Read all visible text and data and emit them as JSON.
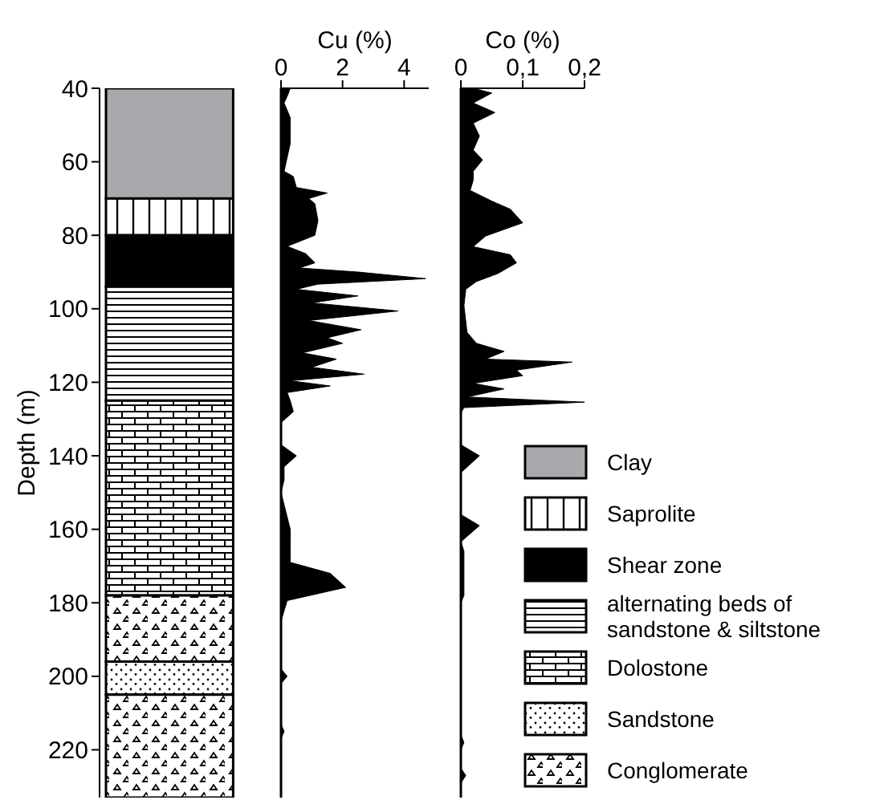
{
  "chart_data": [
    {
      "type": "bar",
      "categories": [
        null
      ],
      "ylabel": "Depth (m)",
      "ylim": [
        233,
        40
      ],
      "yticks": [
        40,
        60,
        80,
        100,
        120,
        140,
        160,
        180,
        200,
        220
      ],
      "tick_labels": "y",
      "legend": "right",
      "grid": false,
      "series": [
        {
          "name": "Clay",
          "color": "#a7a9ac",
          "base": [
            40
          ],
          "values": [
            30
          ]
        },
        {
          "name": "Saprolite",
          "color": "#ffffff",
          "base": [
            70
          ],
          "values": [
            10
          ]
        },
        {
          "name": "Shear zone",
          "color": "#000000",
          "base": [
            80
          ],
          "values": [
            14
          ]
        },
        {
          "name": "alternating beds of sandstone & siltstone",
          "color": "#ffffff",
          "base": [
            94
          ],
          "values": [
            31
          ]
        },
        {
          "name": "Dolostone",
          "color": "#ffffff",
          "base": [
            125
          ],
          "values": [
            53
          ]
        },
        {
          "color": "#ffffff",
          "base": [
            178
          ],
          "values": [
            18
          ]
        },
        {
          "name": "Sandstone",
          "color": "#ffffff",
          "base": [
            196
          ],
          "values": [
            9
          ]
        },
        {
          "name": "Conglomerate",
          "color": "#ffffff",
          "base": [
            205
          ],
          "values": [
            28
          ]
        }
      ]
    },
    {
      "type": "area",
      "orientation": "horizontal",
      "xlabel": "Cu (%)",
      "xlim": [
        0,
        4.8
      ],
      "xticks": [
        0,
        2,
        4
      ],
      "ylim": [
        233,
        40
      ],
      "tick_labels": "x",
      "grid": false,
      "x": [
        40,
        42.2,
        44,
        48,
        55,
        62.6,
        64,
        67,
        68.5,
        70,
        71.4,
        76,
        80,
        83,
        85,
        87.5,
        88.9,
        90,
        91.8,
        93.3,
        94.7,
        96.5,
        98.4,
        100.6,
        103.2,
        105.7,
        107.9,
        109.4,
        112,
        113.7,
        115.9,
        117.8,
        119.6,
        121,
        122.8,
        125,
        128,
        131,
        137,
        140,
        143,
        146.6,
        150,
        160,
        165,
        169,
        172,
        175.8,
        179.4,
        185,
        198,
        200,
        202,
        213,
        215,
        217,
        233
      ],
      "series": [
        {
          "color": "#000000",
          "values": [
            0.3,
            0.2,
            0.1,
            0.3,
            0.3,
            0.1,
            0.4,
            0.5,
            1.5,
            0.9,
            1.1,
            1.2,
            1.1,
            0.2,
            0.8,
            1.1,
            0.6,
            2.5,
            4.7,
            1.2,
            0.5,
            2.5,
            1.0,
            3.8,
            0.9,
            2.6,
            1.5,
            2.0,
            0.7,
            1.8,
            1.0,
            2.7,
            0.3,
            1.6,
            0.2,
            0.3,
            0.4,
            0,
            0,
            0.5,
            0.1,
            0.1,
            0,
            0.3,
            0.3,
            0.3,
            1.6,
            2.1,
            0.2,
            0,
            0,
            0.2,
            0,
            0,
            0.1,
            0,
            0
          ]
        }
      ]
    },
    {
      "type": "area",
      "orientation": "horizontal",
      "xlabel": "Co (%)",
      "xlim": [
        0,
        0.2
      ],
      "xticks": [
        0,
        {
          "value": 0.1,
          "label": "0,1"
        },
        {
          "value": 0.2,
          "label": "0,2"
        }
      ],
      "ylim": [
        233,
        40
      ],
      "tick_labels": "x",
      "grid": false,
      "x": [
        40,
        41.3,
        44,
        46.6,
        49.5,
        53,
        56.8,
        59.5,
        62.6,
        65,
        67.8,
        70.7,
        72.9,
        76.6,
        80.2,
        83.1,
        85.3,
        87.5,
        90.4,
        92.6,
        94.7,
        99.1,
        106.4,
        109.4,
        111.6,
        113.7,
        114.5,
        116.7,
        118.2,
        120.3,
        121.8,
        124,
        125.4,
        126.9,
        128.3,
        137,
        140,
        144.6,
        156,
        159,
        163.4,
        166,
        178,
        180,
        216,
        218,
        220,
        225,
        227,
        229,
        233
      ],
      "series": [
        {
          "color": "#000000",
          "values": [
            0.02,
            0.05,
            0.02,
            0.055,
            0.02,
            0.03,
            0.02,
            0.035,
            0.02,
            0.02,
            0.015,
            0.05,
            0.08,
            0.1,
            0.04,
            0.02,
            0.08,
            0.09,
            0.06,
            0.025,
            0.008,
            0.005,
            0.01,
            0.025,
            0.07,
            0.04,
            0.18,
            0.09,
            0.1,
            0.02,
            0.07,
            0.01,
            0.2,
            0.005,
            0,
            0,
            0.03,
            0,
            0,
            0.03,
            0,
            0.005,
            0.005,
            0,
            0,
            0.005,
            0,
            0,
            0.008,
            0,
            0
          ]
        }
      ]
    }
  ]
}
